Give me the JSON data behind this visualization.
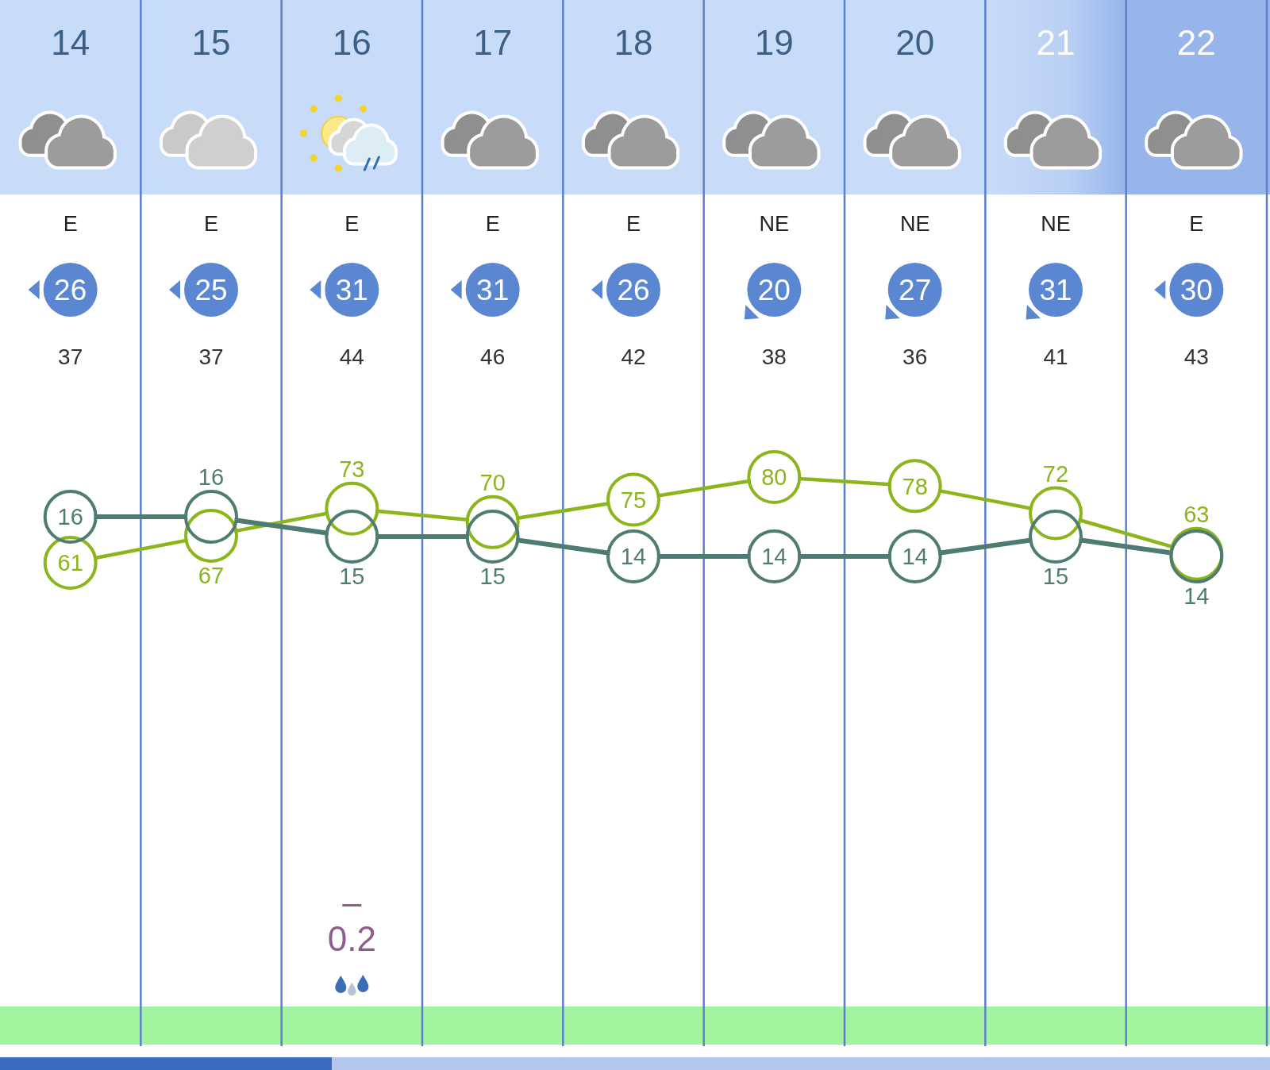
{
  "chart_data": {
    "type": "line",
    "categories": [
      "14",
      "15",
      "16",
      "17",
      "18",
      "19",
      "20",
      "21",
      "22"
    ],
    "series": [
      {
        "color": "#8cb51c",
        "values": [
          61,
          67,
          73,
          70,
          75,
          80,
          78,
          72,
          63
        ]
      },
      {
        "color": "#4e7b72",
        "axis": "y2",
        "values": [
          16,
          16,
          15,
          15,
          14,
          14,
          14,
          15,
          14
        ]
      }
    ],
    "grid": "x",
    "data_labels": true,
    "annotations": [
      "E",
      "E",
      "E",
      "E",
      "E",
      "NE",
      "NE",
      "NE",
      "E",
      "26",
      "25",
      "31",
      "31",
      "26",
      "20",
      "27",
      "31",
      "30",
      "37",
      "37",
      "44",
      "46",
      "42",
      "38",
      "36",
      "41",
      "43",
      "0.2"
    ]
  }
}
